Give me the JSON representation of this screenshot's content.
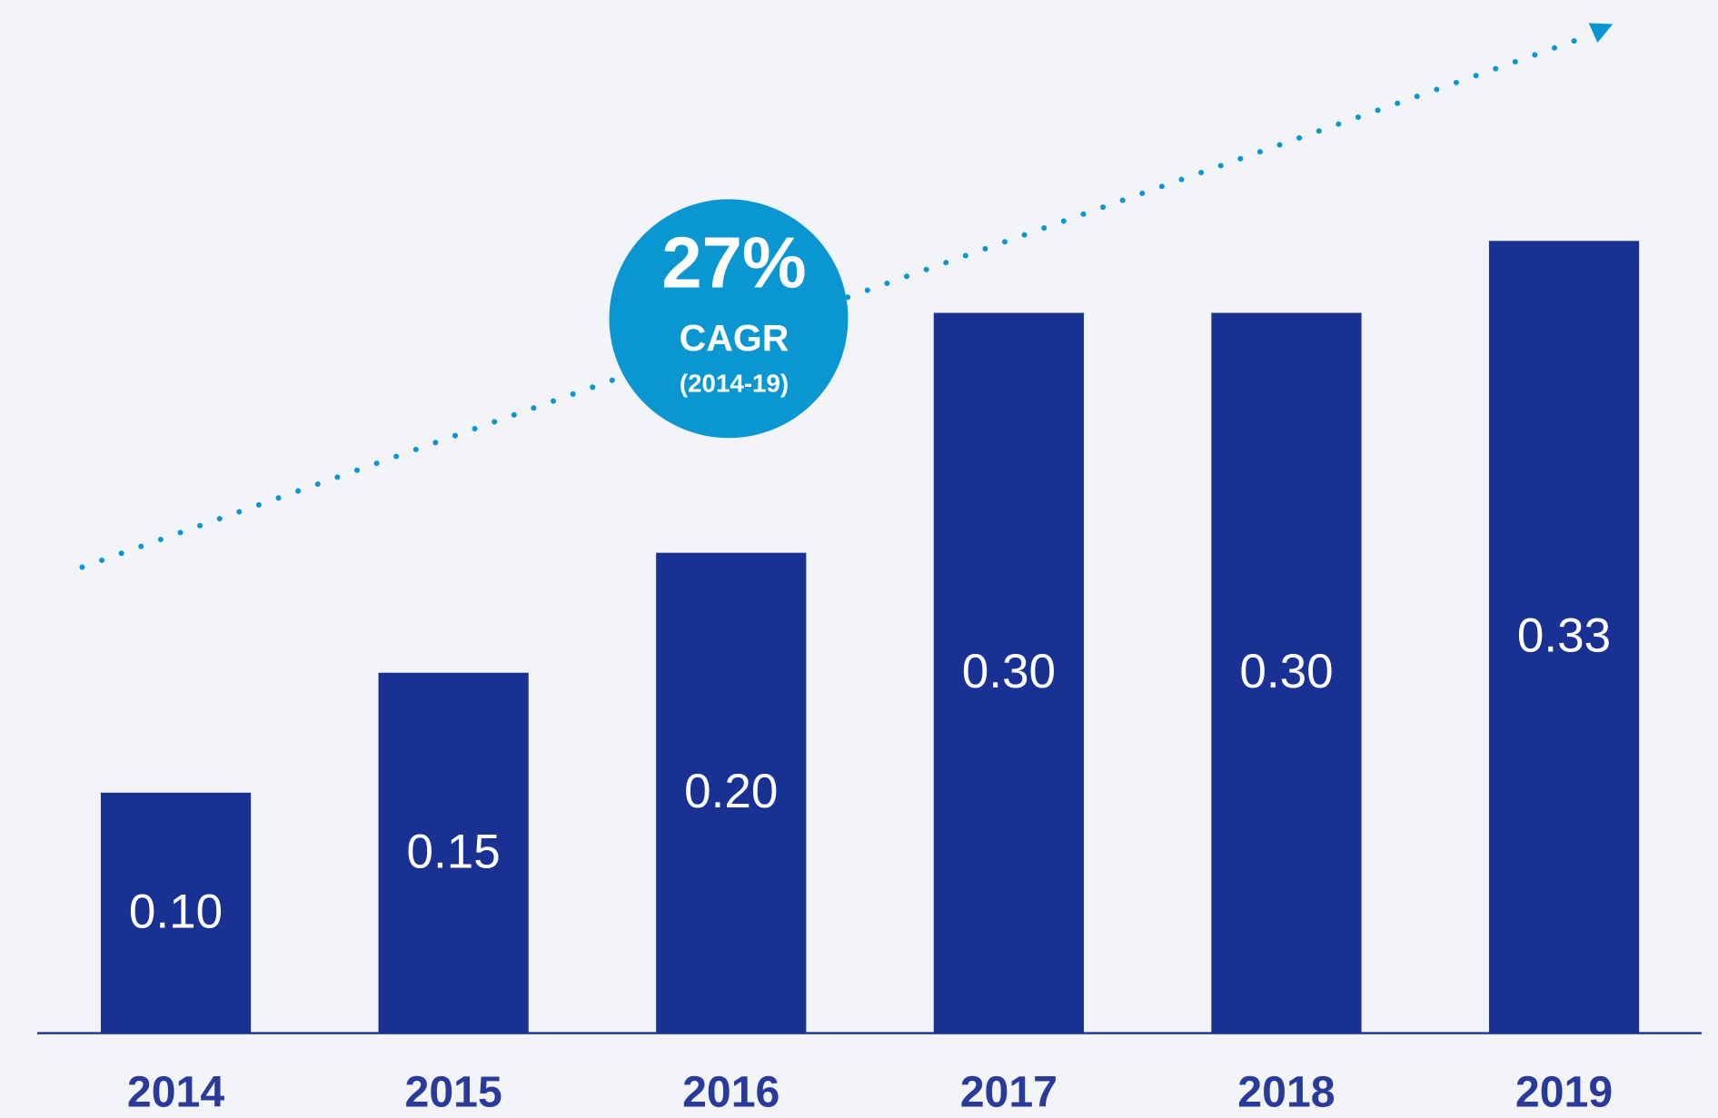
{
  "chart_data": {
    "type": "bar",
    "categories": [
      "2014",
      "2015",
      "2016",
      "2017",
      "2018",
      "2019"
    ],
    "values": [
      0.1,
      0.15,
      0.2,
      0.3,
      0.3,
      0.33
    ],
    "value_labels": [
      "0.10",
      "0.15",
      "0.20",
      "0.30",
      "0.30",
      "0.33"
    ],
    "color": "#1a3194",
    "annotation": {
      "value": "27%",
      "label": "CAGR",
      "period": "(2014-19)",
      "color": "#0a97d1"
    }
  }
}
